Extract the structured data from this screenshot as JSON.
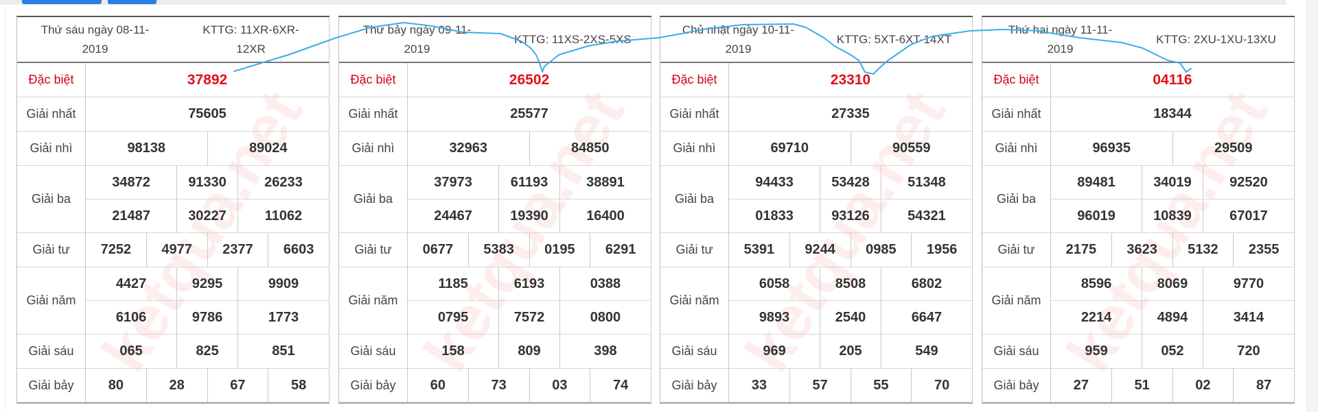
{
  "labels": {
    "db": "Đặc biệt",
    "g1": "Giải nhất",
    "g2": "Giải nhì",
    "g3": "Giải ba",
    "g4": "Giải tư",
    "g5": "Giải năm",
    "g6": "Giải sáu",
    "g7": "Giải bảy"
  },
  "watermark": "ketqua.net",
  "colors": {
    "special": "#e0101c",
    "ink": "#3aaee6",
    "button": "#2a7de1"
  },
  "days": [
    {
      "date": "Thứ sáu ngày 08-11-2019",
      "kttg": "KTTG: 11XR-6XR-12XR",
      "db": [
        "37892"
      ],
      "g1": [
        "75605"
      ],
      "g2": [
        "98138",
        "89024"
      ],
      "g3": [
        "34872",
        "91330",
        "26233",
        "21487",
        "30227",
        "11062"
      ],
      "g4": [
        "7252",
        "4977",
        "2377",
        "6603"
      ],
      "g5": [
        "4427",
        "9295",
        "9909",
        "6106",
        "9786",
        "1773"
      ],
      "g6": [
        "065",
        "825",
        "851"
      ],
      "g7": [
        "80",
        "28",
        "67",
        "58"
      ]
    },
    {
      "date": "Thứ bảy ngày 09-11-2019",
      "kttg": "KTTG: 11XS-2XS-5XS",
      "db": [
        "26502"
      ],
      "g1": [
        "25577"
      ],
      "g2": [
        "32963",
        "84850"
      ],
      "g3": [
        "37973",
        "61193",
        "38891",
        "24467",
        "19390",
        "16400"
      ],
      "g4": [
        "0677",
        "5383",
        "0195",
        "6291"
      ],
      "g5": [
        "1185",
        "6193",
        "0388",
        "0795",
        "7572",
        "0800"
      ],
      "g6": [
        "158",
        "809",
        "398"
      ],
      "g7": [
        "60",
        "73",
        "03",
        "74"
      ]
    },
    {
      "date": "Chủ nhật ngày 10-11-2019",
      "kttg": "KTTG: 5XT-6XT-14XT",
      "db": [
        "23310"
      ],
      "g1": [
        "27335"
      ],
      "g2": [
        "69710",
        "90559"
      ],
      "g3": [
        "94433",
        "53428",
        "51348",
        "01833",
        "93126",
        "54321"
      ],
      "g4": [
        "5391",
        "9244",
        "0985",
        "1956"
      ],
      "g5": [
        "6058",
        "8508",
        "6802",
        "9893",
        "2540",
        "6647"
      ],
      "g6": [
        "969",
        "205",
        "549"
      ],
      "g7": [
        "33",
        "57",
        "55",
        "70"
      ]
    },
    {
      "date": "Thứ hai ngày 11-11-2019",
      "kttg": "KTTG: 2XU-1XU-13XU",
      "db": [
        "04116"
      ],
      "g1": [
        "18344"
      ],
      "g2": [
        "96935",
        "29509"
      ],
      "g3": [
        "89481",
        "34019",
        "92520",
        "96019",
        "10839",
        "67017"
      ],
      "g4": [
        "2175",
        "3623",
        "5132",
        "2355"
      ],
      "g5": [
        "8596",
        "8069",
        "9770",
        "2214",
        "4894",
        "3414"
      ],
      "g6": [
        "959",
        "052",
        "720"
      ],
      "g7": [
        "27",
        "51",
        "02",
        "87"
      ]
    }
  ]
}
